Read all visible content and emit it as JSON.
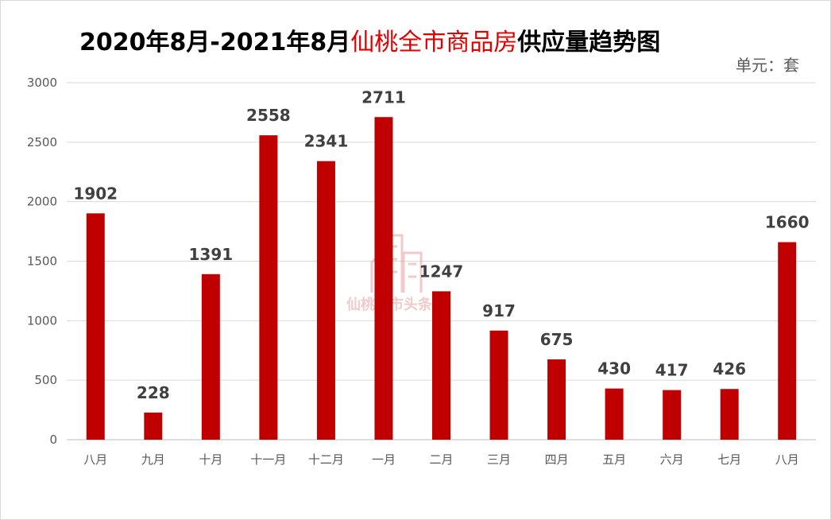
{
  "title_parts": {
    "lead": "2020年8月-2021年8月",
    "city": "仙桃全市商品房",
    "tail": "供应量趋势图"
  },
  "unit_label": "单元：套",
  "watermark": "仙桃楼市头条",
  "colors": {
    "bar": "#c00000",
    "title_accent": "#e00000",
    "grid": "#d9d9d9"
  },
  "chart_data": {
    "type": "bar",
    "title": "2020年8月-2021年8月仙桃全市商品房供应量趋势图",
    "categories": [
      "八月",
      "九月",
      "十月",
      "十一月",
      "十二月",
      "一月",
      "二月",
      "三月",
      "四月",
      "五月",
      "六月",
      "七月",
      "八月"
    ],
    "values": [
      1902,
      228,
      1391,
      2558,
      2341,
      2711,
      1247,
      917,
      675,
      430,
      417,
      426,
      1660
    ],
    "ylim": [
      0,
      3000
    ],
    "yticks": [
      0,
      500,
      1000,
      1500,
      2000,
      2500,
      3000
    ],
    "xlabel": "",
    "ylabel": "",
    "grid": true,
    "legend": "none"
  }
}
